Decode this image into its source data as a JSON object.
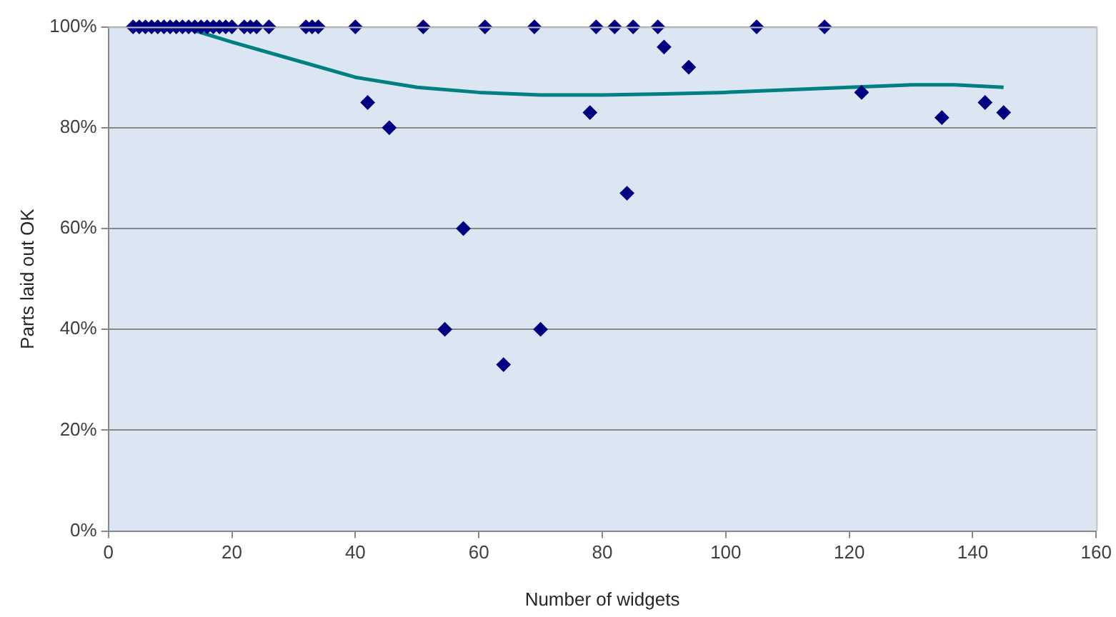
{
  "chart_data": {
    "type": "scatter",
    "xlabel": "Number of widgets",
    "ylabel": "Parts laid out OK",
    "xlim": [
      0,
      160
    ],
    "xticks": [
      0,
      20,
      40,
      60,
      80,
      100,
      120,
      140,
      160
    ],
    "ylim": [
      0,
      100
    ],
    "yticks": [
      {
        "value": 0,
        "label": "0%"
      },
      {
        "value": 20,
        "label": "20%"
      },
      {
        "value": 40,
        "label": "40%"
      },
      {
        "value": 60,
        "label": "60%"
      },
      {
        "value": 80,
        "label": "80%"
      },
      {
        "value": 100,
        "label": "100%"
      }
    ],
    "grid": "y",
    "legend": false,
    "series": [
      {
        "marker": "diamond",
        "color": "#000080",
        "x": [
          4,
          5,
          6,
          7,
          8,
          9,
          10,
          11,
          12,
          13,
          14,
          15,
          16,
          17,
          18,
          19,
          20,
          22,
          23,
          24,
          26,
          32,
          33,
          34,
          40,
          51,
          61,
          69,
          79,
          82,
          85,
          89,
          105,
          116,
          42,
          45.5,
          54.5,
          57.5,
          64,
          70,
          78,
          84,
          90,
          94,
          122,
          135,
          142,
          145
        ],
        "values": [
          100,
          100,
          100,
          100,
          100,
          100,
          100,
          100,
          100,
          100,
          100,
          100,
          100,
          100,
          100,
          100,
          100,
          100,
          100,
          100,
          100,
          100,
          100,
          100,
          100,
          100,
          100,
          100,
          100,
          100,
          100,
          100,
          100,
          100,
          85,
          80,
          40,
          60,
          33,
          40,
          83,
          67,
          96,
          92,
          87,
          82,
          85,
          83
        ]
      },
      {
        "type": "line",
        "marker": "none",
        "color": "#008080",
        "x": [
          12,
          20,
          30,
          40,
          50,
          60,
          70,
          80,
          90,
          100,
          110,
          120,
          130,
          137,
          145
        ],
        "values": [
          100,
          97,
          93.5,
          90,
          88,
          87,
          86.5,
          86.5,
          86.7,
          87,
          87.5,
          88,
          88.5,
          88.5,
          88
        ]
      }
    ]
  }
}
